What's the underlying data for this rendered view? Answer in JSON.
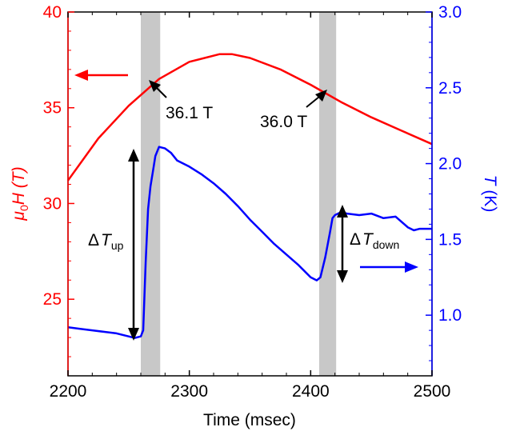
{
  "chart_data": {
    "type": "line",
    "xlabel": "Time (msec)",
    "xlim": [
      2200,
      2500
    ],
    "x_ticks": [
      "2200",
      "2300",
      "2400",
      "2500"
    ],
    "left_axis": {
      "label_symbol": "μ",
      "label_sub": "0",
      "label_rest": "H (T)",
      "color": "#ff0000",
      "ylim": [
        21,
        40
      ],
      "ticks": [
        "25",
        "30",
        "35",
        "40"
      ]
    },
    "right_axis": {
      "label_symbol": "T",
      "label_rest": " (K)",
      "color": "#0000ff",
      "ylim": [
        0.6,
        3.0
      ],
      "ticks": [
        "1.0",
        "1.5",
        "2.0",
        "2.5",
        "3.0"
      ]
    },
    "shaded_bands": [
      {
        "x": [
          2260,
          2276
        ],
        "color": "#c8c8c8"
      },
      {
        "x": [
          2407,
          2421
        ],
        "color": "#c8c8c8"
      }
    ],
    "series": [
      {
        "axis": "left",
        "color": "#ff0000",
        "x": [
          2200,
          2225,
          2250,
          2275,
          2300,
          2325,
          2335,
          2350,
          2375,
          2400,
          2425,
          2450,
          2475,
          2500
        ],
        "y": [
          31.2,
          33.4,
          35.1,
          36.5,
          37.4,
          37.8,
          37.8,
          37.6,
          37.0,
          36.2,
          35.3,
          34.5,
          33.8,
          33.1
        ]
      },
      {
        "axis": "right",
        "color": "#0000ff",
        "x": [
          2200,
          2210,
          2220,
          2230,
          2240,
          2250,
          2255,
          2260,
          2262,
          2264,
          2266,
          2268,
          2270,
          2272,
          2275,
          2280,
          2285,
          2290,
          2300,
          2310,
          2320,
          2330,
          2340,
          2350,
          2360,
          2370,
          2380,
          2390,
          2400,
          2405,
          2408,
          2412,
          2416,
          2418,
          2420,
          2425,
          2430,
          2440,
          2450,
          2460,
          2470,
          2480,
          2485,
          2490,
          2500
        ],
        "y": [
          0.92,
          0.91,
          0.9,
          0.89,
          0.88,
          0.86,
          0.85,
          0.86,
          0.9,
          1.35,
          1.7,
          1.85,
          1.95,
          2.05,
          2.11,
          2.1,
          2.07,
          2.02,
          1.98,
          1.93,
          1.87,
          1.8,
          1.72,
          1.63,
          1.55,
          1.47,
          1.4,
          1.33,
          1.25,
          1.23,
          1.25,
          1.38,
          1.55,
          1.64,
          1.66,
          1.68,
          1.67,
          1.66,
          1.67,
          1.64,
          1.65,
          1.58,
          1.56,
          1.57,
          1.57
        ]
      }
    ],
    "annotations": [
      {
        "text": "36.1 T"
      },
      {
        "text": "36.0 T"
      },
      {
        "text_main": "Δ",
        "text_italic": "T",
        "text_sub": "up"
      },
      {
        "text_main": "Δ",
        "text_italic": "T",
        "text_sub": "down"
      }
    ]
  }
}
